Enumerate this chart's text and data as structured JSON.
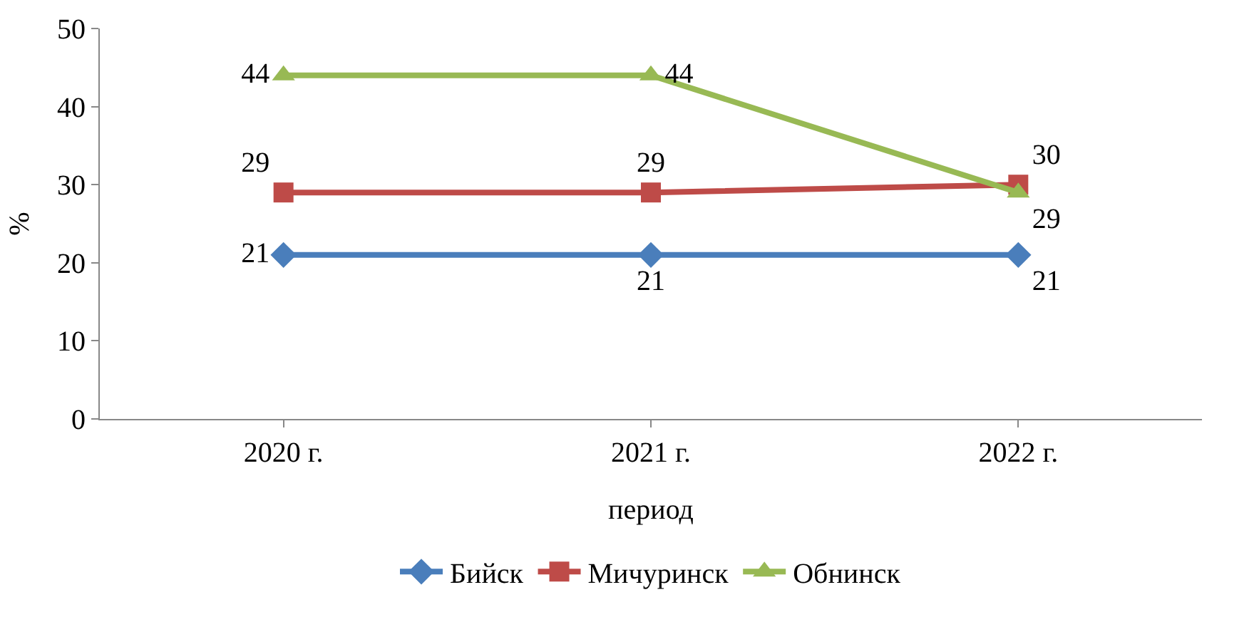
{
  "chart_data": {
    "type": "line",
    "xlabel": "период",
    "ylabel": "%",
    "categories": [
      "2020 г.",
      "2021 г.",
      "2022 г."
    ],
    "series": [
      {
        "name": "Бийск",
        "color": "#4a7ebb",
        "marker": "diamond",
        "values": [
          21,
          21,
          21
        ]
      },
      {
        "name": "Мичуринск",
        "color": "#be4b48",
        "marker": "square",
        "values": [
          29,
          29,
          30
        ]
      },
      {
        "name": "Обнинск",
        "color": "#98b954",
        "marker": "triangle",
        "values": [
          44,
          44,
          29
        ]
      }
    ],
    "ylim": [
      0,
      50
    ],
    "yticks": [
      0,
      10,
      20,
      30,
      40,
      50
    ],
    "grid": false,
    "legend": "bottom",
    "data_labels": true,
    "line_style": "solid"
  }
}
